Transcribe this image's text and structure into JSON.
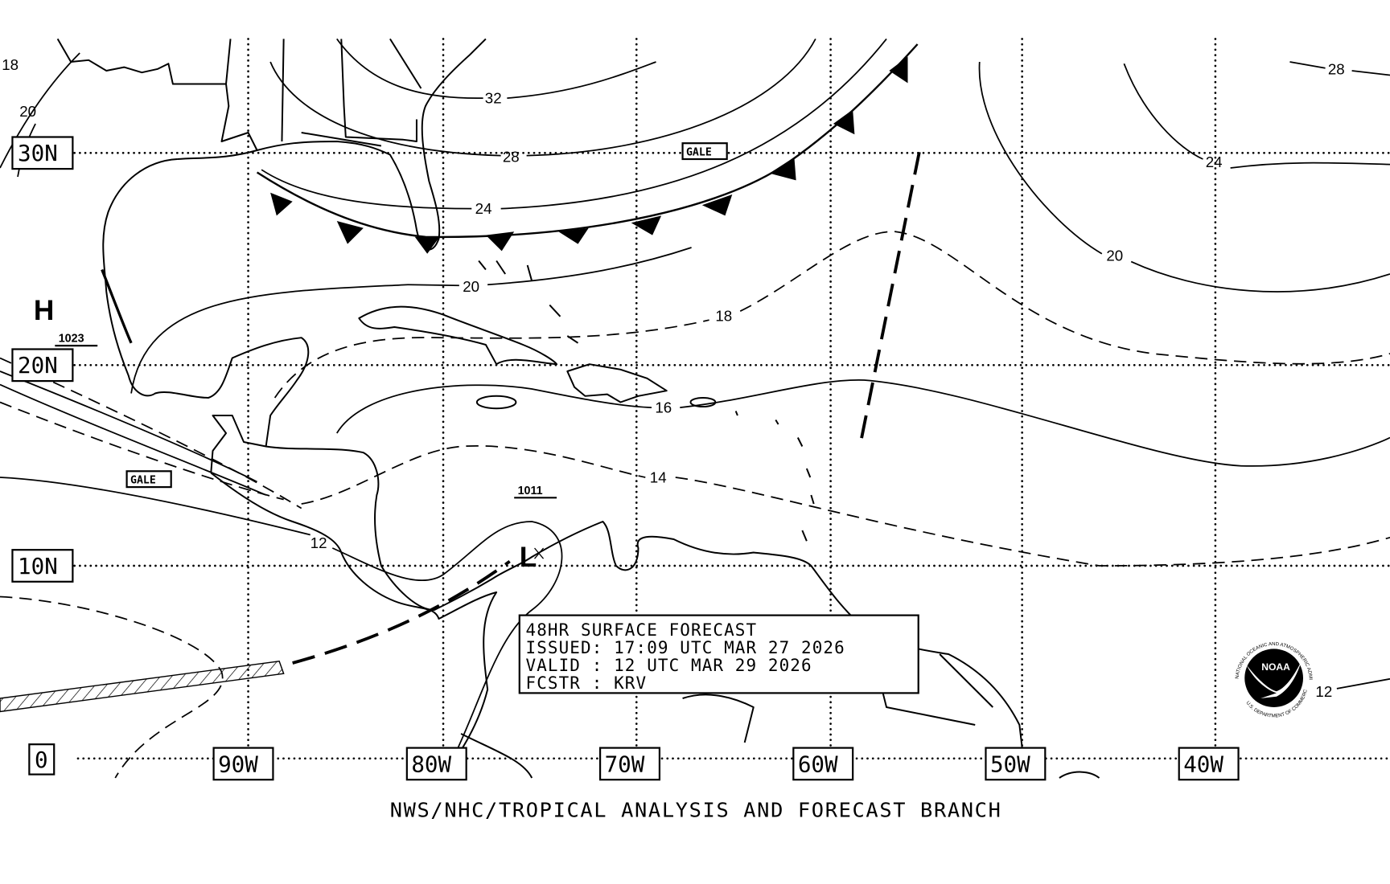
{
  "chart": {
    "product_title": "48HR SURFACE FORECAST",
    "issued": "ISSUED: 17:09 UTC MAR 27 2026",
    "valid": "VALID : 12 UTC MAR 29 2026",
    "forecaster": "FCSTR : KRV",
    "footer": "NWS/NHC/TROPICAL ANALYSIS AND FORECAST BRANCH"
  },
  "latitudes": [
    "30N",
    "20N",
    "10N",
    "0"
  ],
  "longitudes": [
    "90W",
    "80W",
    "70W",
    "60W",
    "50W",
    "40W"
  ],
  "isobar_labels": [
    "18",
    "20",
    "32",
    "28",
    "24",
    "20",
    "18",
    "16",
    "14",
    "12",
    "28",
    "24",
    "20",
    "12"
  ],
  "pressure_centers": [
    {
      "type": "H",
      "pressure": "1023"
    },
    {
      "type": "L",
      "pressure": "1011"
    }
  ],
  "warnings": [
    "GALE",
    "GALE"
  ],
  "logo": {
    "name": "NOAA",
    "ring_top": "NATIONAL OCEANIC AND ATMOSPHERIC ADMINISTRATION",
    "ring_bottom": "U.S. DEPARTMENT OF COMMERCE"
  },
  "colors": {
    "ink": "#000000",
    "background": "#ffffff"
  }
}
